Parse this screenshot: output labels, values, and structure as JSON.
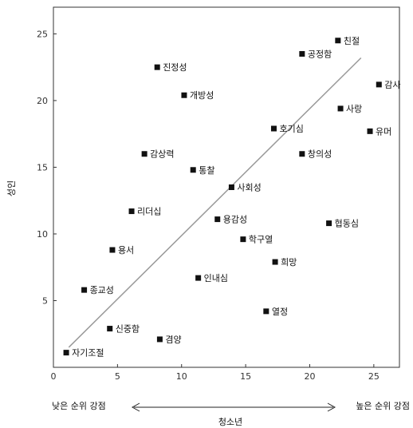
{
  "chart_data": {
    "type": "scatter",
    "title": "",
    "xlabel": "청소년",
    "ylabel": "성인",
    "xlim": [
      0,
      27
    ],
    "ylim": [
      0,
      27
    ],
    "x_ticks": [
      0,
      5,
      10,
      15,
      20,
      25
    ],
    "y_ticks": [
      5,
      10,
      15,
      20,
      25
    ],
    "x_left_note": "낮은 순위 강점",
    "x_right_note": "높은 순위 강점",
    "grid": false,
    "trendline": {
      "x": [
        1.2,
        24
      ],
      "y": [
        1.5,
        23.2
      ]
    },
    "points": [
      {
        "label": "친절",
        "x": 22.2,
        "y": 24.5
      },
      {
        "label": "공정함",
        "x": 19.4,
        "y": 23.5
      },
      {
        "label": "진정성",
        "x": 8.1,
        "y": 22.5
      },
      {
        "label": "감사",
        "x": 25.4,
        "y": 21.2
      },
      {
        "label": "개방성",
        "x": 10.2,
        "y": 20.4
      },
      {
        "label": "사랑",
        "x": 22.4,
        "y": 19.4
      },
      {
        "label": "호기심",
        "x": 17.2,
        "y": 17.9
      },
      {
        "label": "유머",
        "x": 24.7,
        "y": 17.7
      },
      {
        "label": "감상력",
        "x": 7.1,
        "y": 16
      },
      {
        "label": "창의성",
        "x": 19.4,
        "y": 16
      },
      {
        "label": "통찰",
        "x": 10.9,
        "y": 14.8
      },
      {
        "label": "사회성",
        "x": 13.9,
        "y": 13.5
      },
      {
        "label": "리더십",
        "x": 6.1,
        "y": 11.7
      },
      {
        "label": "용감성",
        "x": 12.8,
        "y": 11.1
      },
      {
        "label": "협동심",
        "x": 21.5,
        "y": 10.8
      },
      {
        "label": "학구열",
        "x": 14.8,
        "y": 9.6
      },
      {
        "label": "용서",
        "x": 4.6,
        "y": 8.8
      },
      {
        "label": "희망",
        "x": 17.3,
        "y": 7.9
      },
      {
        "label": "인내심",
        "x": 11.3,
        "y": 6.7
      },
      {
        "label": "종교성",
        "x": 2.4,
        "y": 5.8
      },
      {
        "label": "열정",
        "x": 16.6,
        "y": 4.2
      },
      {
        "label": "신중함",
        "x": 4.4,
        "y": 2.9
      },
      {
        "label": "겸양",
        "x": 8.3,
        "y": 2.1
      },
      {
        "label": "자기조절",
        "x": 1,
        "y": 1.1
      }
    ]
  }
}
